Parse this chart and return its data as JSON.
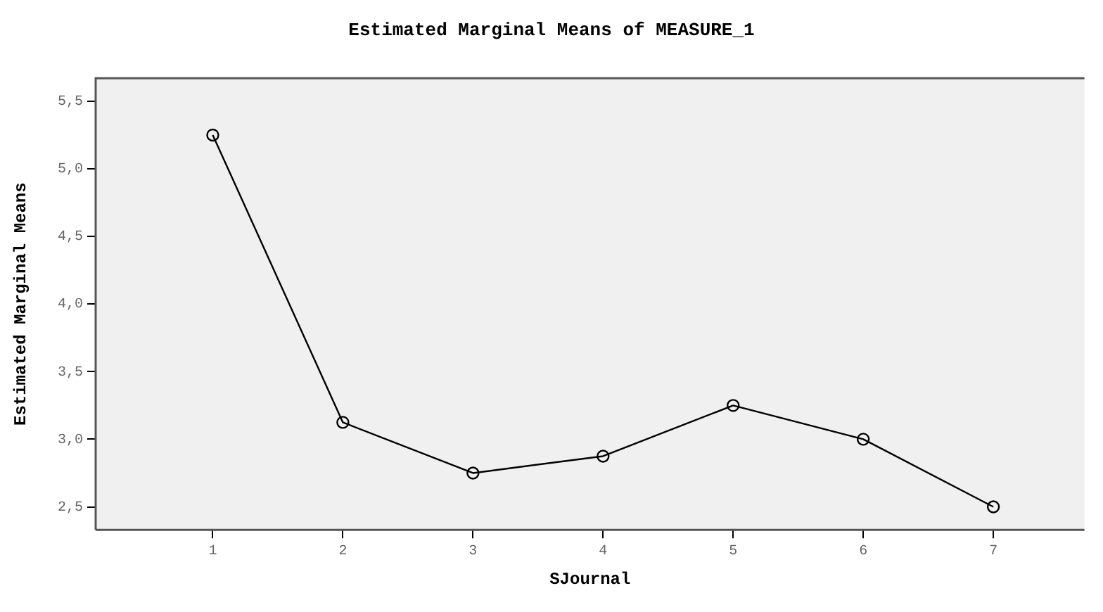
{
  "chart_data": {
    "type": "line",
    "title": "Estimated Marginal Means of MEASURE_1",
    "xlabel": "SJournal",
    "ylabel": "Estimated Marginal Means",
    "x": [
      1,
      2,
      3,
      4,
      5,
      6,
      7
    ],
    "series": [
      {
        "color": "#000000",
        "values": [
          5.25,
          3.125,
          2.75,
          2.875,
          3.25,
          3.0,
          2.5
        ]
      }
    ],
    "xlim": [
      0.1,
      7.7
    ],
    "xticks": [
      1,
      2,
      3,
      4,
      5,
      6,
      7
    ],
    "ylim": [
      2.33,
      5.67
    ],
    "yticks": [
      {
        "value": 2.5,
        "label": "2,5"
      },
      {
        "value": 3.0,
        "label": "3,0"
      },
      {
        "value": 3.5,
        "label": "3,5"
      },
      {
        "value": 4.0,
        "label": "4,0"
      },
      {
        "value": 4.5,
        "label": "4,5"
      },
      {
        "value": 5.0,
        "label": "5,0"
      },
      {
        "value": 5.5,
        "label": "5,5"
      }
    ],
    "grid": false,
    "legend": false,
    "marker": "circle",
    "line_style": "solid"
  }
}
